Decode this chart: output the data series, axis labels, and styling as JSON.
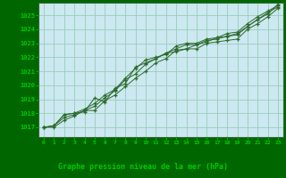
{
  "title": "Graphe pression niveau de la mer (hPa)",
  "bg_color": "#cce8f0",
  "grid_color": "#99ccbb",
  "line_color": "#2d6a2d",
  "marker_color": "#2d6a2d",
  "bottom_bg": "#006600",
  "bottom_text_color": "#00cc00",
  "x_ticks": [
    0,
    1,
    2,
    3,
    4,
    5,
    6,
    7,
    8,
    9,
    10,
    11,
    12,
    13,
    14,
    15,
    16,
    17,
    18,
    19,
    20,
    21,
    22,
    23
  ],
  "ylim": [
    1016.3,
    1025.9
  ],
  "yticks": [
    1017,
    1018,
    1019,
    1020,
    1021,
    1022,
    1023,
    1024,
    1025
  ],
  "series": [
    [
      1017.0,
      1017.0,
      1017.5,
      1017.8,
      1018.2,
      1018.2,
      1018.9,
      1019.3,
      1019.9,
      1020.5,
      1021.0,
      1021.6,
      1021.9,
      1022.5,
      1022.6,
      1022.6,
      1023.0,
      1023.1,
      1023.2,
      1023.3,
      1024.0,
      1024.4,
      1024.9,
      1025.5
    ],
    [
      1017.0,
      1017.1,
      1017.7,
      1017.9,
      1018.2,
      1018.5,
      1019.1,
      1019.6,
      1020.4,
      1020.8,
      1021.5,
      1021.9,
      1022.3,
      1022.6,
      1022.9,
      1022.9,
      1023.2,
      1023.3,
      1023.5,
      1023.6,
      1024.2,
      1024.7,
      1025.2,
      1025.6
    ],
    [
      1017.0,
      1017.1,
      1017.9,
      1018.0,
      1018.3,
      1018.7,
      1019.3,
      1019.7,
      1020.5,
      1021.2,
      1021.8,
      1022.0,
      1022.2,
      1022.8,
      1023.0,
      1023.0,
      1023.3,
      1023.4,
      1023.7,
      1023.8,
      1024.4,
      1024.9,
      1025.3,
      1025.7
    ],
    [
      1017.0,
      1017.1,
      1017.9,
      1018.0,
      1018.1,
      1019.1,
      1018.8,
      1019.8,
      1020.1,
      1021.3,
      1021.6,
      1021.9,
      1022.3,
      1022.4,
      1022.6,
      1022.9,
      1023.1,
      1023.4,
      1023.5,
      1023.7,
      1024.2,
      1024.7,
      1025.1,
      1025.8
    ]
  ]
}
